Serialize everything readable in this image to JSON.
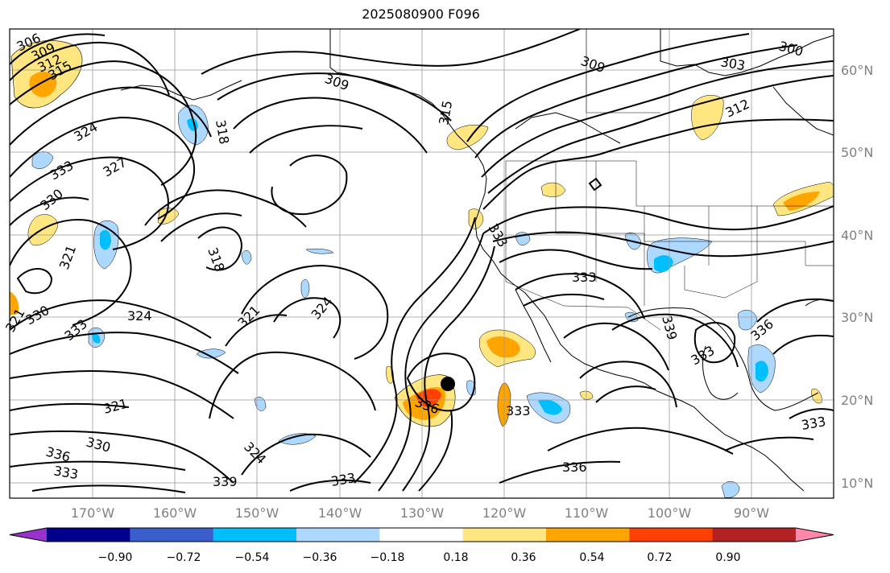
{
  "title": "2025080900 F096",
  "lat_ticks": [
    "60°N",
    "50°N",
    "40°N",
    "30°N",
    "20°N",
    "10°N"
  ],
  "lon_ticks": [
    "170°W",
    "160°W",
    "150°W",
    "140°W",
    "130°W",
    "120°W",
    "110°W",
    "100°W",
    "90°W"
  ],
  "colorbar": {
    "tick_labels": [
      "−0.90",
      "−0.72",
      "−0.54",
      "−0.36",
      "−0.18",
      "0.18",
      "0.36",
      "0.54",
      "0.72",
      "0.90"
    ],
    "colors": [
      "#9932cc",
      "#00008b",
      "#3a5fcd",
      "#00bfff",
      "#add8ff",
      "#ffffff",
      "#ffe680",
      "#ffa500",
      "#ff4000",
      "#b22222",
      "#ff88aa"
    ]
  },
  "contour_labels": [
    "306",
    "309",
    "312",
    "315",
    "324",
    "333",
    "327",
    "330",
    "318",
    "309",
    "315",
    "309",
    "303",
    "300",
    "312",
    "333",
    "318",
    "333",
    "321",
    "324",
    "321",
    "324",
    "339",
    "336",
    "333",
    "336",
    "333",
    "321",
    "330",
    "336",
    "333",
    "324",
    "339",
    "333",
    "336",
    "333",
    "330",
    "333",
    "321"
  ],
  "marker": {
    "label": "",
    "lat": 22,
    "lon": -126
  }
}
